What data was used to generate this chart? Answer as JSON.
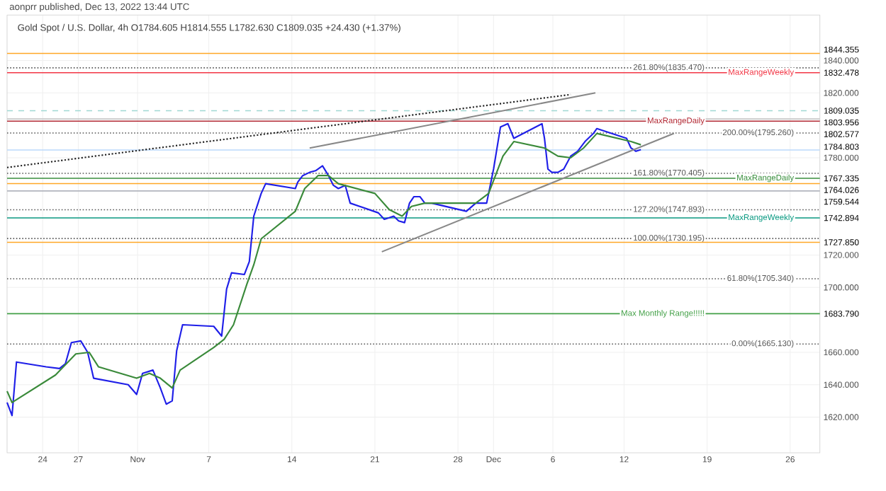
{
  "chart_data": {
    "type": "line",
    "title": "Gold Spot / U.S. Dollar, 4h  O1784.605 H1814.555 L1782.630 C1809.035 +24.430 (+1.37%)",
    "subtitle": "aonprr published, Dec 13, 2022 13:44 UTC",
    "xlim": [
      "2022-10-21",
      "2022-12-28T12:00"
    ],
    "ylim": [
      1598,
      1868
    ],
    "xticks": [
      {
        "value": "2022-10-24",
        "label": "24"
      },
      {
        "value": "2022-10-27",
        "label": "27"
      },
      {
        "value": "2022-11-01",
        "label": "Nov"
      },
      {
        "value": "2022-11-07",
        "label": "7"
      },
      {
        "value": "2022-11-14",
        "label": "14"
      },
      {
        "value": "2022-11-21",
        "label": "21"
      },
      {
        "value": "2022-11-28",
        "label": "28"
      },
      {
        "value": "2022-12-01",
        "label": "Dec"
      },
      {
        "value": "2022-12-06",
        "label": "6"
      },
      {
        "value": "2022-12-12",
        "label": "12"
      },
      {
        "value": "2022-12-19",
        "label": "19"
      },
      {
        "value": "2022-12-26",
        "label": "26"
      }
    ],
    "yticks": [
      {
        "value": 1620,
        "label": "1620.000"
      },
      {
        "value": 1640,
        "label": "1640.000"
      },
      {
        "value": 1660,
        "label": "1660.000"
      },
      {
        "value": 1700,
        "label": "1700.000"
      },
      {
        "value": 1720,
        "label": "1720.000"
      },
      {
        "value": 1780,
        "label": "1780.000"
      },
      {
        "value": 1820,
        "label": "1820.000"
      },
      {
        "value": 1840,
        "label": "1840.000"
      }
    ],
    "grid": true,
    "series": [
      {
        "color": "#1f1fe8",
        "x": [
          "2022-10-21T00:00",
          "2022-10-21T10:00",
          "2022-10-21T19:00",
          "2022-10-24T07:00",
          "2022-10-25T10:00",
          "2022-10-25T22:00",
          "2022-10-26T10:00",
          "2022-10-27T05:00",
          "2022-10-27T19:00",
          "2022-10-28T07:00",
          "2022-10-31T05:00",
          "2022-10-31T22:00",
          "2022-11-01T10:00",
          "2022-11-02T07:00",
          "2022-11-02T22:00",
          "2022-11-03T10:00",
          "2022-11-03T22:00",
          "2022-11-04T07:00",
          "2022-11-04T19:00",
          "2022-11-07T10:00",
          "2022-11-08T02:00",
          "2022-11-08T12:00",
          "2022-11-08T22:00",
          "2022-11-10T00:00",
          "2022-11-10T10:00",
          "2022-11-10T19:00",
          "2022-11-11T10:00",
          "2022-11-11T19:00",
          "2022-11-14T07:00",
          "2022-11-14T12:00",
          "2022-11-14T22:00",
          "2022-11-15T12:00",
          "2022-11-16T00:00",
          "2022-11-16T14:00",
          "2022-11-17T02:00",
          "2022-11-17T12:00",
          "2022-11-17T22:00",
          "2022-11-18T12:00",
          "2022-11-18T22:00",
          "2022-11-21T07:00",
          "2022-11-21T19:00",
          "2022-11-22T05:00",
          "2022-11-22T14:00",
          "2022-11-23T00:00",
          "2022-11-23T12:00",
          "2022-11-23T22:00",
          "2022-11-24T07:00",
          "2022-11-24T19:00",
          "2022-11-25T05:00",
          "2022-11-25T19:00",
          "2022-11-28T17:00",
          "2022-11-29T12:00",
          "2022-11-30T10:00",
          "2022-12-01T00:00",
          "2022-12-01T14:00",
          "2022-12-02T05:00",
          "2022-12-02T17:00",
          "2022-12-05T02:00",
          "2022-12-05T07:00",
          "2022-12-05T14:00",
          "2022-12-05T22:00",
          "2022-12-06T10:00",
          "2022-12-06T22:00",
          "2022-12-07T12:00",
          "2022-12-08T02:00",
          "2022-12-08T17:00",
          "2022-12-09T10:00",
          "2022-12-09T17:00",
          "2022-12-12T05:00",
          "2022-12-12T14:00",
          "2022-12-13T00:00",
          "2022-12-13T10:00"
        ],
        "values": [
          1629,
          1621,
          1654,
          1651,
          1650,
          1653,
          1666,
          1667,
          1660,
          1644,
          1640,
          1634,
          1647,
          1649,
          1638,
          1628,
          1630,
          1661,
          1677,
          1676,
          1670,
          1699,
          1709,
          1708,
          1716,
          1744,
          1758,
          1764,
          1761,
          1765,
          1769,
          1771,
          1772,
          1775,
          1769,
          1763,
          1761,
          1763,
          1752,
          1746,
          1742,
          1743,
          1744,
          1741,
          1740,
          1752,
          1756,
          1756,
          1752,
          1752,
          1747,
          1752,
          1752,
          1773,
          1799,
          1801,
          1792,
          1801,
          1792,
          1773,
          1771,
          1771,
          1773,
          1781,
          1784,
          1790,
          1795,
          1798,
          1792,
          1786,
          1784,
          1785
        ],
        "line_style": "solid"
      },
      {
        "color": "#3a8a3a",
        "x": [
          "2022-10-21T00:00",
          "2022-10-21T10:00",
          "2022-10-25T02:00",
          "2022-10-26T19:00",
          "2022-10-27T22:00",
          "2022-10-28T17:00",
          "2022-10-31T22:00",
          "2022-11-02T00:00",
          "2022-11-02T22:00",
          "2022-11-03T22:00",
          "2022-11-04T14:00",
          "2022-11-07T10:00",
          "2022-11-08T07:00",
          "2022-11-09T02:00",
          "2022-11-10T05:00",
          "2022-11-10T19:00",
          "2022-11-11T10:00",
          "2022-11-14T07:00",
          "2022-11-15T02:00",
          "2022-11-16T05:00",
          "2022-11-17T02:00",
          "2022-11-17T22:00",
          "2022-11-21T00:00",
          "2022-11-22T05:00",
          "2022-11-23T07:00",
          "2022-11-24T02:00",
          "2022-11-25T05:00",
          "2022-11-25T19:00",
          "2022-11-29T12:00",
          "2022-11-30T14:00",
          "2022-12-01T19:00",
          "2022-12-02T17:00",
          "2022-12-05T07:00",
          "2022-12-06T10:00",
          "2022-12-07T12:00",
          "2022-12-08T14:00",
          "2022-12-09T17:00",
          "2022-12-12T14:00",
          "2022-12-13T10:00"
        ],
        "values": [
          1636,
          1629,
          1646,
          1659,
          1660,
          1651,
          1644,
          1647,
          1644,
          1638,
          1649,
          1663,
          1668,
          1677,
          1702,
          1714,
          1730,
          1747,
          1761,
          1769,
          1769,
          1764,
          1758,
          1748,
          1744,
          1750,
          1752,
          1752,
          1752,
          1758,
          1781,
          1790,
          1786,
          1781,
          1780,
          1786,
          1795,
          1790,
          1788
        ],
        "line_style": "solid"
      },
      {
        "color": "#222222",
        "x": [
          "2022-10-21T00:00",
          "2022-12-07T12:00"
        ],
        "values": [
          1774,
          1819
        ],
        "line_style": "dotted"
      },
      {
        "color": "#888888",
        "x": [
          "2022-11-15T12:00",
          "2022-12-09T14:00"
        ],
        "values": [
          1786,
          1820
        ],
        "line_style": "solid"
      },
      {
        "color": "#888888",
        "x": [
          "2022-11-21T14:00",
          "2022-12-16T05:00"
        ],
        "values": [
          1722,
          1795
        ],
        "line_style": "solid"
      }
    ],
    "ref_lines": [
      {
        "axis": "y",
        "value": 1844.355,
        "color": "#ffa726",
        "line_style": "solid"
      },
      {
        "axis": "y",
        "value": 1835.47,
        "label": "261.80%(1835.470)",
        "color": "#555555",
        "line_style": "dotted"
      },
      {
        "axis": "y",
        "value": 1832.478,
        "label": "MaxRangeWeekly",
        "color": "#f23645",
        "line_style": "solid"
      },
      {
        "axis": "y",
        "value": 1809.035,
        "color": "#9fd8d2",
        "line_style": "dashed"
      },
      {
        "axis": "y",
        "value": 1803.956,
        "color": "#c8c8c8",
        "line_style": "solid"
      },
      {
        "axis": "y",
        "value": 1802.577,
        "label": "MaxRangeDaily",
        "color": "#b22833",
        "line_style": "solid"
      },
      {
        "axis": "y",
        "value": 1795.26,
        "label": "200.00%(1795.260)",
        "color": "#555555",
        "line_style": "dotted"
      },
      {
        "axis": "y",
        "value": 1784.803,
        "color": "#bbd9fb",
        "line_style": "solid"
      },
      {
        "axis": "y",
        "value": 1770.405,
        "label": "161.80%(1770.405)",
        "color": "#555555",
        "line_style": "dotted"
      },
      {
        "axis": "y",
        "value": 1767.335,
        "label": "MaxRangeDaily",
        "color": "#388e3c",
        "line_style": "solid"
      },
      {
        "axis": "y",
        "value": 1764.026,
        "color": "#ffa726",
        "line_style": "solid"
      },
      {
        "axis": "y",
        "value": 1759.544,
        "color": "#b2b5be",
        "line_style": "solid"
      },
      {
        "axis": "y",
        "value": 1747.893,
        "label": "127.20%(1747.893)",
        "color": "#555555",
        "line_style": "dotted"
      },
      {
        "axis": "y",
        "value": 1742.894,
        "label": "MaxRangeWeekly",
        "color": "#089981",
        "line_style": "solid"
      },
      {
        "axis": "y",
        "value": 1730.195,
        "label": "100.00%(1730.195)",
        "color": "#555555",
        "line_style": "dotted"
      },
      {
        "axis": "y",
        "value": 1727.85,
        "color": "#ffa726",
        "line_style": "solid"
      },
      {
        "axis": "y",
        "value": 1705.34,
        "label": "61.80%(1705.340)",
        "color": "#555555",
        "line_style": "dotted"
      },
      {
        "axis": "y",
        "value": 1683.79,
        "label": "Max Monthly Range!!!!!",
        "color": "#43a047",
        "line_style": "solid"
      },
      {
        "axis": "y",
        "value": 1665.13,
        "label": "0.00%(1665.130)",
        "color": "#555555",
        "line_style": "dotted"
      }
    ],
    "annotations": [
      {
        "text": "1844.355",
        "x": "2022-12-28T12:00",
        "y": 1844.355
      },
      {
        "text": "1832.478",
        "x": "2022-12-28T12:00",
        "y": 1832.478
      },
      {
        "text": "1809.035",
        "x": "2022-12-28T12:00",
        "y": 1809.035
      },
      {
        "text": "1803.956",
        "x": "2022-12-28T12:00",
        "y": 1803.956
      },
      {
        "text": "1802.577",
        "x": "2022-12-28T12:00",
        "y": 1802.577
      },
      {
        "text": "1784.803",
        "x": "2022-12-28T12:00",
        "y": 1784.803
      },
      {
        "text": "1767.335",
        "x": "2022-12-28T12:00",
        "y": 1767.335
      },
      {
        "text": "1764.026",
        "x": "2022-12-28T12:00",
        "y": 1764.026
      },
      {
        "text": "1759.544",
        "x": "2022-12-28T12:00",
        "y": 1759.544
      },
      {
        "text": "1742.894",
        "x": "2022-12-28T12:00",
        "y": 1742.894
      },
      {
        "text": "1727.850",
        "x": "2022-12-28T12:00",
        "y": 1727.85
      },
      {
        "text": "1683.790",
        "x": "2022-12-28T12:00",
        "y": 1683.79
      }
    ]
  }
}
